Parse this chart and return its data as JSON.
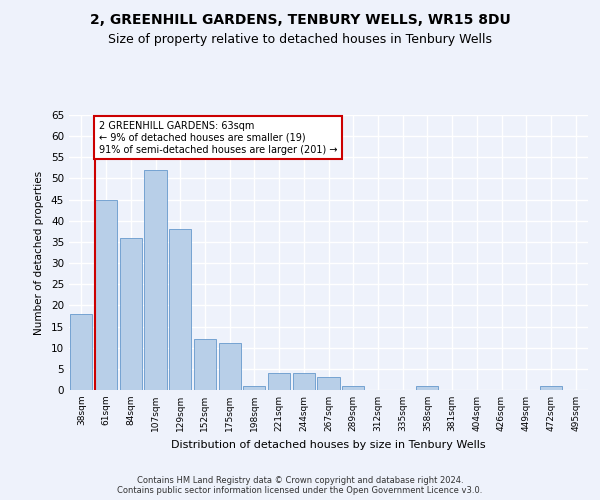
{
  "title1": "2, GREENHILL GARDENS, TENBURY WELLS, WR15 8DU",
  "title2": "Size of property relative to detached houses in Tenbury Wells",
  "xlabel": "Distribution of detached houses by size in Tenbury Wells",
  "ylabel": "Number of detached properties",
  "categories": [
    "38sqm",
    "61sqm",
    "84sqm",
    "107sqm",
    "129sqm",
    "152sqm",
    "175sqm",
    "198sqm",
    "221sqm",
    "244sqm",
    "267sqm",
    "289sqm",
    "312sqm",
    "335sqm",
    "358sqm",
    "381sqm",
    "404sqm",
    "426sqm",
    "449sqm",
    "472sqm",
    "495sqm"
  ],
  "values": [
    18,
    45,
    36,
    52,
    38,
    12,
    11,
    1,
    4,
    4,
    3,
    1,
    0,
    0,
    1,
    0,
    0,
    0,
    0,
    1,
    0
  ],
  "bar_color": "#b8cfe8",
  "bar_edge_color": "#6699cc",
  "reference_line_index": 1,
  "annotation_text": "2 GREENHILL GARDENS: 63sqm\n← 9% of detached houses are smaller (19)\n91% of semi-detached houses are larger (201) →",
  "annotation_box_color": "#ffffff",
  "annotation_box_edge_color": "#cc0000",
  "ref_line_color": "#cc0000",
  "ylim": [
    0,
    65
  ],
  "yticks": [
    0,
    5,
    10,
    15,
    20,
    25,
    30,
    35,
    40,
    45,
    50,
    55,
    60,
    65
  ],
  "footer": "Contains HM Land Registry data © Crown copyright and database right 2024.\nContains public sector information licensed under the Open Government Licence v3.0.",
  "background_color": "#eef2fb",
  "grid_color": "#ffffff",
  "title_fontsize": 10,
  "subtitle_fontsize": 9,
  "bar_width": 0.9
}
